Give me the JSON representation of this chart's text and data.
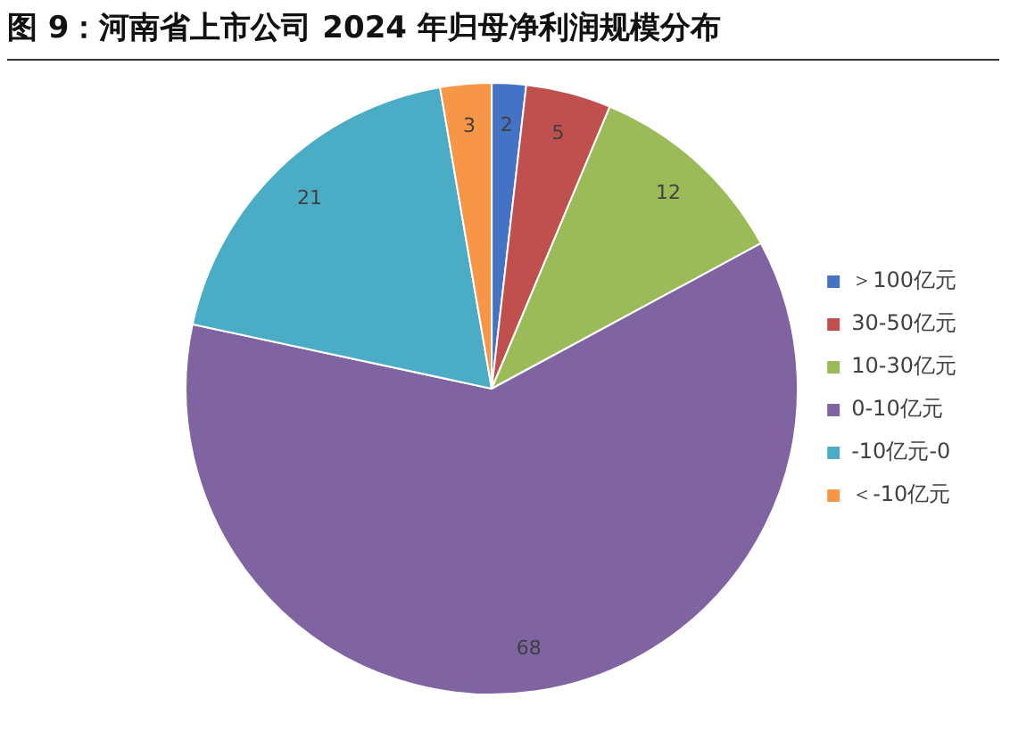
{
  "chart_data": {
    "type": "pie",
    "title": "图 9：河南省上市公司 2024 年归母净利润规模分布",
    "categories": [
      "＞100亿元",
      "30-50亿元",
      "10-30亿元",
      "0-10亿元",
      "-10亿元-0",
      "＜-10亿元"
    ],
    "values": [
      2,
      5,
      12,
      68,
      21,
      3
    ],
    "colors": [
      "#4472c4",
      "#c0504d",
      "#9bbb59",
      "#8064a2",
      "#4bacc6",
      "#f79646"
    ],
    "data_labels": true,
    "legend": "right"
  }
}
